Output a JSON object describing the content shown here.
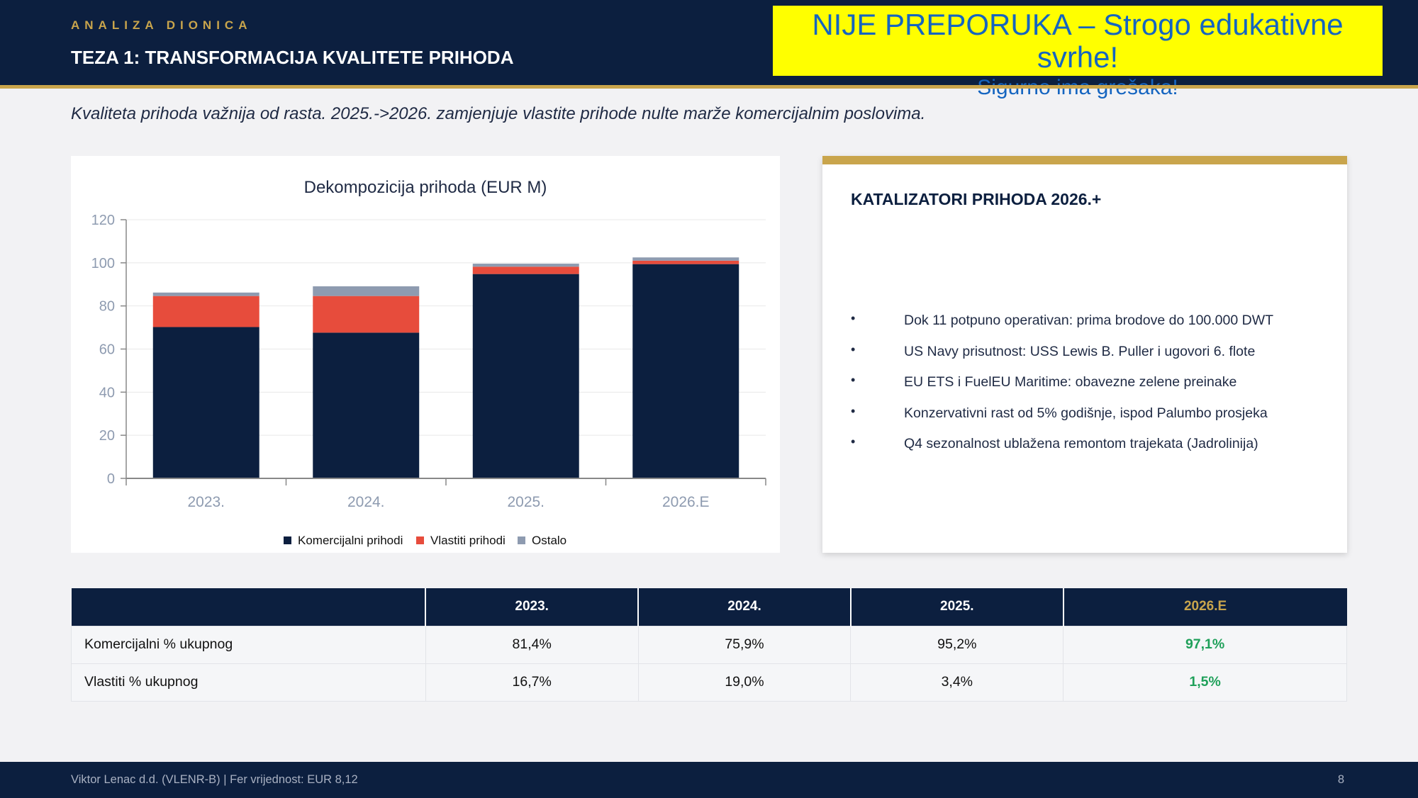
{
  "header": {
    "kicker": "ANALIZA DIONICA",
    "title": "TEZA 1: TRANSFORMACIJA KVALITETE PRIHODA"
  },
  "warning": {
    "line1": "NIJE PREPORUKA – Strogo edukativne svrhe!",
    "line2": "Sigurno ima grešaka!"
  },
  "subtitle": "Kvaliteta prihoda važnija od rasta. 2025.->2026. zamjenjuje vlastite prihode nulte marže komercijalnim poslovima.",
  "chart_data": {
    "type": "bar",
    "stacked": true,
    "title": "Dekompozicija prihoda (EUR M)",
    "categories": [
      "2023.",
      "2024.",
      "2025.",
      "2026.E"
    ],
    "series": [
      {
        "name": "Komercijalni prihodi",
        "color": "#0c1f3f",
        "values": [
          70.2,
          67.6,
          94.8,
          99.4
        ]
      },
      {
        "name": "Vlastiti prihodi",
        "color": "#e74c3c",
        "values": [
          14.4,
          17.0,
          3.4,
          1.6
        ]
      },
      {
        "name": "Ostalo",
        "color": "#8e9bb0",
        "values": [
          1.6,
          4.5,
          1.4,
          1.5
        ]
      }
    ],
    "ylim": [
      0,
      120
    ],
    "yticks": [
      "0",
      "20",
      "40",
      "60",
      "80",
      "100",
      "120"
    ],
    "xlabel": "",
    "ylabel": "",
    "grid": true,
    "legend": "bottom"
  },
  "catalysts": {
    "title": "KATALIZATORI PRIHODA 2026.+",
    "bullet": "•",
    "items": [
      "Dok 11 potpuno operativan: prima brodove do 100.000 DWT",
      "US Navy prisutnost: USS Lewis B. Puller i ugovori 6. flote",
      "EU ETS i FuelEU Maritime: obavezne zelene preinake",
      "Konzervativni rast od 5% godišnje, ispod Palumbo prosjeka",
      "Q4 sezonalnost ublažena remontom trajekata (Jadrolinija)"
    ]
  },
  "table": {
    "headers": [
      "",
      "2023.",
      "2024.",
      "2025.",
      "2026.E"
    ],
    "rows": [
      {
        "label": "Komercijalni % ukupnog",
        "values": [
          "81,4%",
          "75,9%",
          "95,2%",
          "97,1%"
        ]
      },
      {
        "label": "Vlastiti % ukupnog",
        "values": [
          "16,7%",
          "19,0%",
          "3,4%",
          "1,5%"
        ]
      }
    ]
  },
  "footer": {
    "left": "Viktor Lenac d.d. (VLENR-B)  |  Fer vrijednost: EUR 8,12",
    "page": "8"
  },
  "colors": {
    "navy": "#0c1f3f",
    "gold": "#c9a54c",
    "green": "#1fa05a",
    "warning_bg": "#ffff00",
    "warning_text": "#1565c0"
  }
}
